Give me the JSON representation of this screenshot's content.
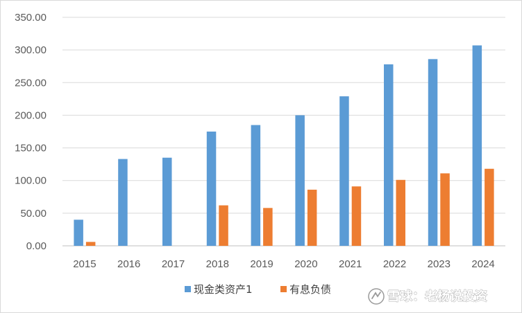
{
  "chart_data": {
    "type": "bar",
    "categories": [
      "2015",
      "2016",
      "2017",
      "2018",
      "2019",
      "2020",
      "2021",
      "2022",
      "2023",
      "2024"
    ],
    "series": [
      {
        "name": "现金类资产1",
        "color": "#5B9BD5",
        "values": [
          40,
          133,
          135,
          175,
          185,
          200,
          229,
          278,
          286,
          307
        ]
      },
      {
        "name": "有息负债",
        "color": "#ED7D31",
        "values": [
          6,
          null,
          null,
          62,
          58,
          86,
          91,
          101,
          111,
          118
        ]
      }
    ],
    "ylim": [
      0,
      350
    ],
    "yticks": [
      0,
      50,
      100,
      150,
      200,
      250,
      300,
      350
    ],
    "ytick_labels": [
      "0.00",
      "50.00",
      "100.00",
      "150.00",
      "200.00",
      "250.00",
      "300.00",
      "350.00"
    ],
    "grid": true,
    "legend_position": "bottom"
  },
  "watermark": {
    "text": "雪球：老杨说投资",
    "icon": "snowball-logo-icon"
  }
}
